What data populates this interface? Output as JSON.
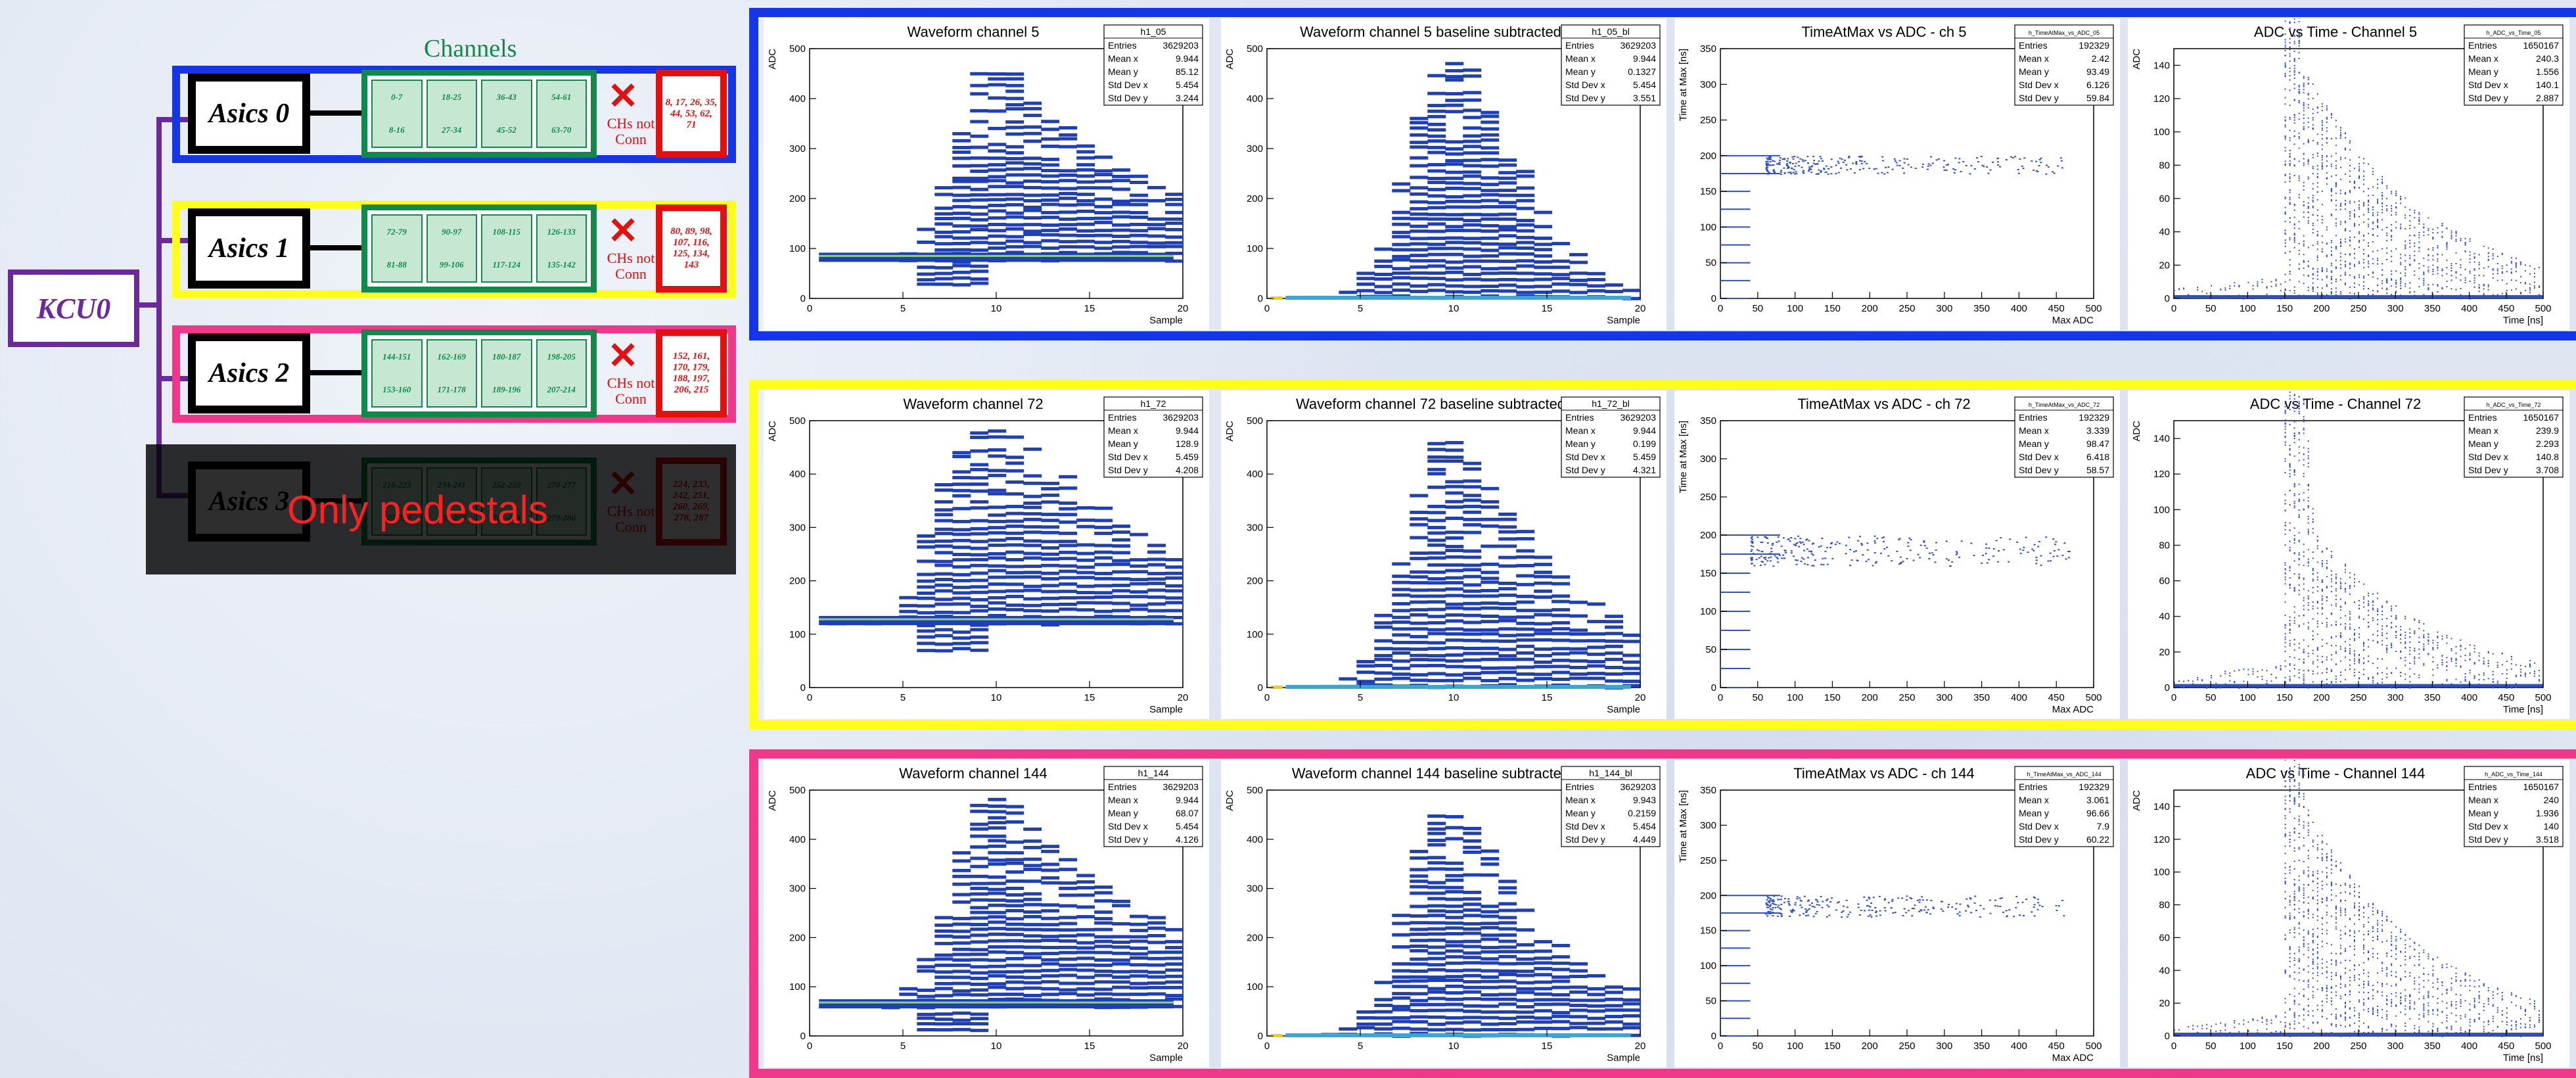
{
  "left": {
    "kcu_label": "KCU0",
    "channels_title": "Channels",
    "not_conn_label": "CHs not Conn",
    "overlay_text": "Only pedestals",
    "asics": [
      {
        "label": "Asics 0",
        "frame_color": "#1436e6",
        "groups": [
          [
            "0-7",
            "8-16"
          ],
          [
            "18-25",
            "27-34"
          ],
          [
            "36-43",
            "45-52"
          ],
          [
            "54-61",
            "63-70"
          ]
        ],
        "disconnected": "8, 17, 26, 35, 44, 53, 62, 71"
      },
      {
        "label": "Asics 1",
        "frame_color": "#ffff1a",
        "groups": [
          [
            "72-79",
            "81-88"
          ],
          [
            "90-97",
            "99-106"
          ],
          [
            "108-115",
            "117-124"
          ],
          [
            "126-133",
            "135-142"
          ]
        ],
        "disconnected": "80, 89, 98, 107, 116, 125, 134, 143"
      },
      {
        "label": "Asics 2",
        "frame_color": "#f0388a",
        "groups": [
          [
            "144-151",
            "153-160"
          ],
          [
            "162-169",
            "171-178"
          ],
          [
            "180-187",
            "189-196"
          ],
          [
            "198-205",
            "207-214"
          ]
        ],
        "disconnected": "152, 161, 170, 179, 188, 197, 206, 215"
      },
      {
        "label": "Asics 3",
        "frame_color": "#6a2a9c",
        "groups": [
          [
            "216-223",
            "225-232"
          ],
          [
            "234-241",
            "243-250"
          ],
          [
            "252-259",
            "261-268"
          ],
          [
            "270-277",
            "279-286"
          ]
        ],
        "disconnected": "224, 233, 242, 251, 260, 269, 278, 287"
      }
    ]
  },
  "row_colors": [
    "#1436e6",
    "#ffff1a",
    "#f0388a"
  ],
  "colors": {
    "fill": "#1f3fb8",
    "mean_line": "#8cd27a",
    "baseline": "#3aa6d8",
    "yellow": "#f0d000",
    "scatter": "#2e4fc9"
  },
  "chart_data": [
    {
      "type": "heatmap",
      "title": "Waveform channel 5",
      "xlabel": "Sample",
      "ylabel": "ADC",
      "xlim": [
        0,
        20
      ],
      "ylim": [
        0,
        500
      ],
      "xticks": [
        0,
        5,
        10,
        15,
        20
      ],
      "yticks": [
        0,
        100,
        200,
        300,
        400,
        500
      ],
      "stats": {
        "name": "h1_05",
        "rows": [
          [
            "Entries",
            "3629203"
          ],
          [
            "Mean x",
            "9.944"
          ],
          [
            "Mean y",
            "85.12"
          ],
          [
            "Std Dev x",
            "5.454"
          ],
          [
            "Std Dev y",
            "3.244"
          ]
        ]
      },
      "mean_level": 85,
      "spread": [
        60,
        80,
        80,
        80,
        110,
        150,
        230,
        350,
        460,
        480,
        470,
        420,
        390,
        360,
        330,
        300,
        280,
        260,
        240,
        220
      ],
      "baseline_subtracted": false
    },
    {
      "type": "heatmap",
      "title": "Waveform channel 5 baseline subtracted",
      "xlabel": "Sample",
      "ylabel": "ADC",
      "xlim": [
        0,
        20
      ],
      "ylim": [
        0,
        500
      ],
      "xticks": [
        0,
        5,
        10,
        15,
        20
      ],
      "yticks": [
        0,
        100,
        200,
        300,
        400,
        500
      ],
      "stats": {
        "name": "h1_05_bl",
        "rows": [
          [
            "Entries",
            "3629203"
          ],
          [
            "Mean x",
            "9.944"
          ],
          [
            "Mean y",
            "0.1327"
          ],
          [
            "Std Dev x",
            "5.454"
          ],
          [
            "Std Dev y",
            "3.551"
          ]
        ]
      },
      "mean_level": 0,
      "spread": [
        5,
        10,
        15,
        30,
        60,
        120,
        250,
        380,
        460,
        490,
        470,
        400,
        330,
        270,
        200,
        140,
        100,
        70,
        50,
        40
      ],
      "baseline_subtracted": true
    },
    {
      "type": "scatter",
      "title": "TimeAtMax vs ADC - ch 5",
      "xlabel": "Max ADC",
      "ylabel": "Time at Max [ns]",
      "xlim": [
        0,
        500
      ],
      "ylim": [
        0,
        350
      ],
      "xticks": [
        0,
        50,
        100,
        150,
        200,
        250,
        300,
        350,
        400,
        450,
        500
      ],
      "yticks": [
        0,
        50,
        100,
        150,
        200,
        250,
        300,
        350
      ],
      "stats": {
        "name": "h_TimeAtMax_vs_ADC_05",
        "rows": [
          [
            "Entries",
            "192329"
          ],
          [
            "Mean x",
            "2.42"
          ],
          [
            "Mean y",
            "93.49"
          ],
          [
            "Std Dev x",
            "6.126"
          ],
          [
            "Std Dev y",
            "59.84"
          ]
        ]
      },
      "bands": [
        0,
        25,
        50,
        75,
        100,
        125,
        150,
        175,
        200
      ],
      "cluster_y": [
        175,
        200
      ],
      "cluster_x": [
        60,
        460
      ]
    },
    {
      "type": "scatter",
      "title": "ADC vs Time - Channel 5",
      "xlabel": "Time [ns]",
      "ylabel": "ADC",
      "xlim": [
        0,
        500
      ],
      "ylim": [
        0,
        150
      ],
      "xticks": [
        0,
        50,
        100,
        150,
        200,
        250,
        300,
        350,
        400,
        450,
        500
      ],
      "yticks": [
        0,
        20,
        40,
        60,
        80,
        100,
        120,
        140
      ],
      "stats": {
        "name": "h_ADC_vs_Time_05",
        "rows": [
          [
            "Entries",
            "1650167"
          ],
          [
            "Mean x",
            "240.3"
          ],
          [
            "Mean y",
            "1.556"
          ],
          [
            "Std Dev x",
            "140.1"
          ],
          [
            "Std Dev y",
            "2.887"
          ]
        ]
      },
      "peak_time": 175,
      "peak_adc": 140
    },
    {
      "type": "heatmap",
      "title": "Waveform channel 72",
      "xlabel": "Sample",
      "ylabel": "ADC",
      "xlim": [
        0,
        20
      ],
      "ylim": [
        0,
        500
      ],
      "xticks": [
        0,
        5,
        10,
        15,
        20
      ],
      "yticks": [
        0,
        100,
        200,
        300,
        400,
        500
      ],
      "stats": {
        "name": "h1_72",
        "rows": [
          [
            "Entries",
            "3629203"
          ],
          [
            "Mean x",
            "9.944"
          ],
          [
            "Mean y",
            "128.9"
          ],
          [
            "Std Dev x",
            "5.459"
          ],
          [
            "Std Dev y",
            "4.208"
          ]
        ]
      },
      "mean_level": 128,
      "spread": [
        130,
        130,
        130,
        140,
        200,
        300,
        400,
        470,
        490,
        490,
        480,
        460,
        430,
        410,
        380,
        350,
        320,
        300,
        280,
        260
      ],
      "baseline_subtracted": false
    },
    {
      "type": "heatmap",
      "title": "Waveform channel 72 baseline subtracted",
      "xlabel": "Sample",
      "ylabel": "ADC",
      "xlim": [
        0,
        20
      ],
      "ylim": [
        0,
        500
      ],
      "xticks": [
        0,
        5,
        10,
        15,
        20
      ],
      "yticks": [
        0,
        100,
        200,
        300,
        400,
        500
      ],
      "stats": {
        "name": "h1_72_bl",
        "rows": [
          [
            "Entries",
            "3629203"
          ],
          [
            "Mean x",
            "9.944"
          ],
          [
            "Mean y",
            "0.199"
          ],
          [
            "Std Dev x",
            "5.459"
          ],
          [
            "Std Dev y",
            "4.321"
          ]
        ]
      },
      "mean_level": 0,
      "spread": [
        5,
        10,
        20,
        40,
        80,
        150,
        270,
        380,
        470,
        470,
        440,
        390,
        340,
        300,
        260,
        220,
        190,
        170,
        150,
        130
      ],
      "baseline_subtracted": true
    },
    {
      "type": "scatter",
      "title": "TimeAtMax vs ADC - ch 72",
      "xlabel": "Max ADC",
      "ylabel": "Time at Max [ns]",
      "xlim": [
        0,
        500
      ],
      "ylim": [
        0,
        350
      ],
      "xticks": [
        0,
        50,
        100,
        150,
        200,
        250,
        300,
        350,
        400,
        450,
        500
      ],
      "yticks": [
        0,
        50,
        100,
        150,
        200,
        250,
        300,
        350
      ],
      "stats": {
        "name": "h_TimeAtMax_vs_ADC_72",
        "rows": [
          [
            "Entries",
            "192329"
          ],
          [
            "Mean x",
            "3.339"
          ],
          [
            "Mean y",
            "98.47"
          ],
          [
            "Std Dev x",
            "6.418"
          ],
          [
            "Std Dev y",
            "58.57"
          ]
        ]
      },
      "bands": [
        0,
        25,
        50,
        75,
        100,
        125,
        150,
        175,
        200
      ],
      "cluster_y": [
        160,
        200
      ],
      "cluster_x": [
        40,
        470
      ]
    },
    {
      "type": "scatter",
      "title": "ADC vs Time - Channel 72",
      "xlabel": "Time [ns]",
      "ylabel": "ADC",
      "xlim": [
        0,
        500
      ],
      "ylim": [
        0,
        150
      ],
      "xticks": [
        0,
        50,
        100,
        150,
        200,
        250,
        300,
        350,
        400,
        450,
        500
      ],
      "yticks": [
        0,
        20,
        40,
        60,
        80,
        100,
        120,
        140
      ],
      "stats": {
        "name": "h_ADC_vs_Time_72",
        "rows": [
          [
            "Entries",
            "1650167"
          ],
          [
            "Mean x",
            "239.9"
          ],
          [
            "Mean y",
            "2.293"
          ],
          [
            "Std Dev x",
            "140.8"
          ],
          [
            "Std Dev y",
            "3.708"
          ]
        ]
      },
      "peak_time": 190,
      "peak_adc": 90
    },
    {
      "type": "heatmap",
      "title": "Waveform channel 144",
      "xlabel": "Sample",
      "ylabel": "ADC",
      "xlim": [
        0,
        20
      ],
      "ylim": [
        0,
        500
      ],
      "xticks": [
        0,
        5,
        10,
        15,
        20
      ],
      "yticks": [
        0,
        100,
        200,
        300,
        400,
        500
      ],
      "stats": {
        "name": "h1_144",
        "rows": [
          [
            "Entries",
            "3629203"
          ],
          [
            "Mean x",
            "9.944"
          ],
          [
            "Mean y",
            "68.07"
          ],
          [
            "Std Dev x",
            "5.454"
          ],
          [
            "Std Dev y",
            "4.126"
          ]
        ]
      },
      "mean_level": 68,
      "spread": [
        60,
        70,
        70,
        80,
        110,
        170,
        280,
        400,
        480,
        500,
        480,
        440,
        400,
        370,
        340,
        310,
        290,
        270,
        250,
        230
      ],
      "baseline_subtracted": false
    },
    {
      "type": "heatmap",
      "title": "Waveform channel 144 baseline subtracted",
      "xlabel": "Sample",
      "ylabel": "ADC",
      "xlim": [
        0,
        20
      ],
      "ylim": [
        0,
        500
      ],
      "xticks": [
        0,
        5,
        10,
        15,
        20
      ],
      "yticks": [
        0,
        100,
        200,
        300,
        400,
        500
      ],
      "stats": {
        "name": "h1_144_bl",
        "rows": [
          [
            "Entries",
            "3629203"
          ],
          [
            "Mean x",
            "9.943"
          ],
          [
            "Mean y",
            "0.2159"
          ],
          [
            "Std Dev x",
            "5.454"
          ],
          [
            "Std Dev y",
            "4.449"
          ]
        ]
      },
      "mean_level": 0,
      "spread": [
        5,
        10,
        15,
        30,
        60,
        130,
        260,
        400,
        470,
        480,
        450,
        390,
        330,
        280,
        240,
        200,
        170,
        150,
        130,
        110
      ],
      "baseline_subtracted": true
    },
    {
      "type": "scatter",
      "title": "TimeAtMax vs ADC - ch 144",
      "xlabel": "Max ADC",
      "ylabel": "Time at Max [ns]",
      "xlim": [
        0,
        500
      ],
      "ylim": [
        0,
        350
      ],
      "xticks": [
        0,
        50,
        100,
        150,
        200,
        250,
        300,
        350,
        400,
        450,
        500
      ],
      "yticks": [
        0,
        50,
        100,
        150,
        200,
        250,
        300,
        350
      ],
      "stats": {
        "name": "h_TimeAtMax_vs_ADC_144",
        "rows": [
          [
            "Entries",
            "192329"
          ],
          [
            "Mean x",
            "3.061"
          ],
          [
            "Mean y",
            "96.66"
          ],
          [
            "Std Dev x",
            "7.9"
          ],
          [
            "Std Dev y",
            "60.22"
          ]
        ]
      },
      "bands": [
        0,
        25,
        50,
        75,
        100,
        125,
        150,
        175,
        200
      ],
      "cluster_y": [
        170,
        200
      ],
      "cluster_x": [
        60,
        460
      ]
    },
    {
      "type": "scatter",
      "title": "ADC vs Time - Channel 144",
      "xlabel": "Time [ns]",
      "ylabel": "ADC",
      "xlim": [
        0,
        500
      ],
      "ylim": [
        0,
        150
      ],
      "xticks": [
        0,
        50,
        100,
        150,
        200,
        250,
        300,
        350,
        400,
        450,
        500
      ],
      "yticks": [
        0,
        20,
        40,
        60,
        80,
        100,
        120,
        140
      ],
      "stats": {
        "name": "h_ADC_vs_Time_144",
        "rows": [
          [
            "Entries",
            "1650167"
          ],
          [
            "Mean x",
            "240"
          ],
          [
            "Mean y",
            "1.936"
          ],
          [
            "Std Dev x",
            "140"
          ],
          [
            "Std Dev y",
            "3.518"
          ]
        ]
      },
      "peak_time": 180,
      "peak_adc": 140
    }
  ]
}
